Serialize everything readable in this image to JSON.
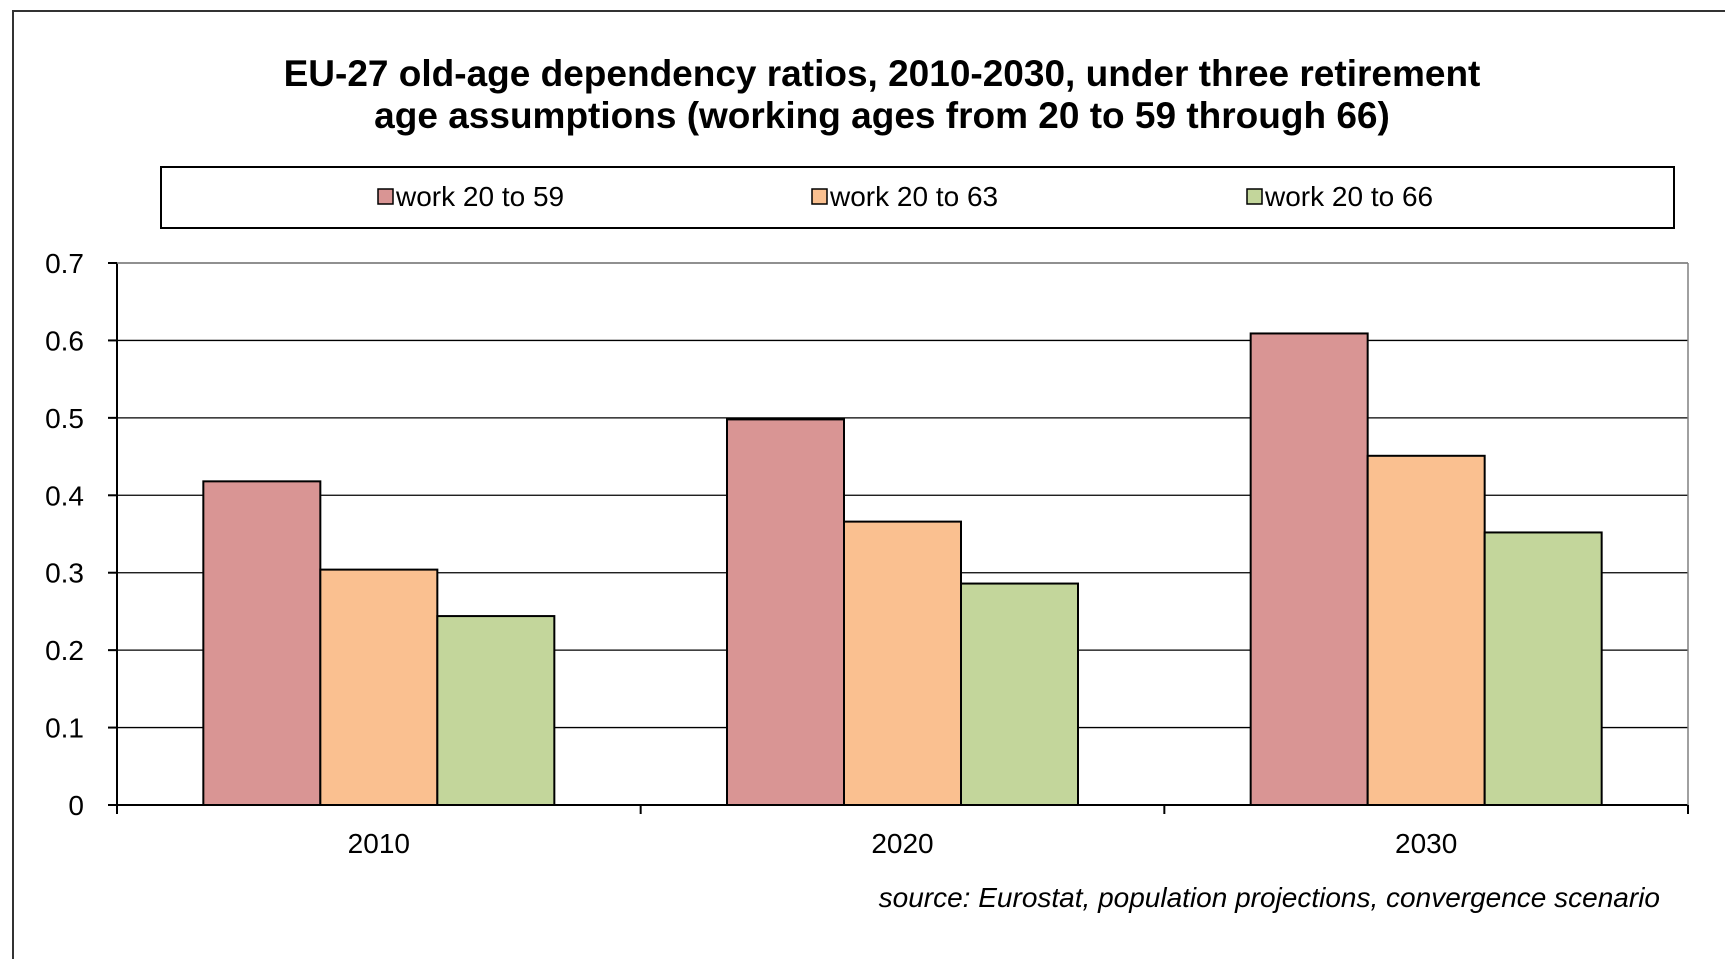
{
  "chart_data": {
    "type": "bar",
    "title_lines": [
      "EU-27 old-age dependency ratios, 2010-2030, under three retirement",
      "age assumptions (working ages from 20 to 59 through 66)"
    ],
    "categories": [
      "2010",
      "2020",
      "2030"
    ],
    "series": [
      {
        "name": "work 20 to 59",
        "values": [
          0.418,
          0.498,
          0.609
        ],
        "color": "#d99594"
      },
      {
        "name": "work 20 to 63",
        "values": [
          0.304,
          0.366,
          0.451
        ],
        "color": "#fac090"
      },
      {
        "name": "work 20 to 66",
        "values": [
          0.244,
          0.286,
          0.352
        ],
        "color": "#c3d69b"
      }
    ],
    "ylim": [
      0,
      0.7
    ],
    "yticks": [
      "0",
      "0.1",
      "0.2",
      "0.3",
      "0.4",
      "0.5",
      "0.6",
      "0.7"
    ],
    "grid": true,
    "legend_position": "top",
    "annotation": "source: Eurostat, population projections, convergence scenario"
  }
}
